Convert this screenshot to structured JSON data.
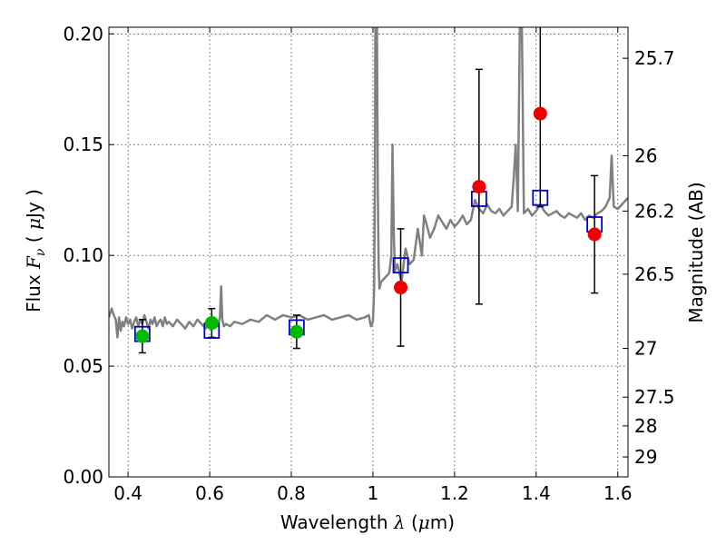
{
  "chart_data": {
    "type": "line",
    "xlabel": {
      "prefix": "Wavelength",
      "symbol": "λ",
      "open": "(",
      "unit": "μ",
      "unit_rest": "m)"
    },
    "ylabel": {
      "prefix": "Flux",
      "symbol": "F",
      "sub": "ν",
      "open": "(",
      "unit": "μ",
      "unit_rest": "Jy )"
    },
    "y2label": "Magnitude (AB)",
    "xlim": [
      0.353,
      1.625
    ],
    "ylim": [
      0.0,
      0.203
    ],
    "x_ticks": [
      0.4,
      0.6,
      0.8,
      1.0,
      1.2,
      1.4,
      1.6
    ],
    "x_tick_labels": [
      "0.4",
      "0.6",
      "0.8",
      "1",
      "1.2",
      "1.4",
      "1.6"
    ],
    "y_ticks": [
      0.0,
      0.05,
      0.1,
      0.15,
      0.2
    ],
    "y_tick_labels": [
      "0.00",
      "0.05",
      "0.10",
      "0.15",
      "0.20"
    ],
    "y2_ticks": [
      {
        "label": "25.7",
        "flux": 0.189
      },
      {
        "label": "26",
        "flux": 0.145
      },
      {
        "label": "26.2",
        "flux": 0.12
      },
      {
        "label": "26.5",
        "flux": 0.0915
      },
      {
        "label": "27",
        "flux": 0.058
      },
      {
        "label": "27.5",
        "flux": 0.036
      },
      {
        "label": "28",
        "flux": 0.023
      },
      {
        "label": "29",
        "flux": 0.009
      }
    ],
    "grid": true,
    "colors": {
      "model": "#808080",
      "detected": "#00bb00",
      "nir": "#ee0000",
      "synthetic": "#0000cc",
      "errorbar": "#000000"
    },
    "model_spectrum": {
      "x": [
        0.353,
        0.36,
        0.365,
        0.37,
        0.374,
        0.378,
        0.382,
        0.386,
        0.39,
        0.395,
        0.4,
        0.405,
        0.41,
        0.415,
        0.42,
        0.425,
        0.43,
        0.435,
        0.44,
        0.445,
        0.45,
        0.455,
        0.46,
        0.465,
        0.47,
        0.475,
        0.48,
        0.485,
        0.49,
        0.495,
        0.5,
        0.51,
        0.52,
        0.53,
        0.54,
        0.55,
        0.56,
        0.57,
        0.58,
        0.59,
        0.6,
        0.61,
        0.62,
        0.625,
        0.628,
        0.631,
        0.635,
        0.64,
        0.65,
        0.66,
        0.68,
        0.7,
        0.72,
        0.74,
        0.76,
        0.78,
        0.8,
        0.82,
        0.84,
        0.86,
        0.88,
        0.9,
        0.92,
        0.94,
        0.96,
        0.98,
        0.99,
        0.995,
        1.0,
        1.003,
        1.005,
        1.006,
        1.008,
        1.01,
        1.012,
        1.014,
        1.016,
        1.02,
        1.03,
        1.04,
        1.045,
        1.048,
        1.051,
        1.054,
        1.06,
        1.07,
        1.08,
        1.09,
        1.1,
        1.11,
        1.12,
        1.125,
        1.13,
        1.14,
        1.15,
        1.16,
        1.17,
        1.18,
        1.19,
        1.2,
        1.21,
        1.22,
        1.23,
        1.24,
        1.25,
        1.26,
        1.27,
        1.28,
        1.29,
        1.3,
        1.31,
        1.32,
        1.33,
        1.34,
        1.345,
        1.35,
        1.355,
        1.36,
        1.365,
        1.37,
        1.38,
        1.39,
        1.4,
        1.41,
        1.42,
        1.43,
        1.44,
        1.45,
        1.46,
        1.47,
        1.48,
        1.49,
        1.5,
        1.51,
        1.52,
        1.53,
        1.54,
        1.55,
        1.56,
        1.57,
        1.575,
        1.58,
        1.585,
        1.59,
        1.6,
        1.61,
        1.625
      ],
      "y": [
        0.072,
        0.076,
        0.073,
        0.071,
        0.063,
        0.072,
        0.066,
        0.07,
        0.068,
        0.072,
        0.069,
        0.071,
        0.067,
        0.07,
        0.072,
        0.068,
        0.071,
        0.069,
        0.073,
        0.07,
        0.067,
        0.071,
        0.069,
        0.072,
        0.068,
        0.07,
        0.071,
        0.068,
        0.072,
        0.069,
        0.07,
        0.068,
        0.071,
        0.069,
        0.067,
        0.07,
        0.068,
        0.071,
        0.069,
        0.067,
        0.07,
        0.069,
        0.068,
        0.072,
        0.086,
        0.071,
        0.068,
        0.069,
        0.068,
        0.07,
        0.069,
        0.071,
        0.07,
        0.073,
        0.071,
        0.073,
        0.072,
        0.073,
        0.071,
        0.072,
        0.073,
        0.071,
        0.072,
        0.073,
        0.071,
        0.072,
        0.073,
        0.068,
        0.07,
        0.085,
        0.14,
        0.203,
        0.203,
        0.203,
        0.13,
        0.096,
        0.085,
        0.088,
        0.09,
        0.092,
        0.1,
        0.15,
        0.11,
        0.093,
        0.096,
        0.088,
        0.103,
        0.096,
        0.098,
        0.112,
        0.1,
        0.118,
        0.115,
        0.108,
        0.112,
        0.118,
        0.115,
        0.112,
        0.116,
        0.113,
        0.115,
        0.118,
        0.114,
        0.116,
        0.125,
        0.121,
        0.119,
        0.123,
        0.12,
        0.119,
        0.121,
        0.118,
        0.12,
        0.122,
        0.135,
        0.15,
        0.12,
        0.203,
        0.203,
        0.119,
        0.121,
        0.118,
        0.12,
        0.123,
        0.12,
        0.118,
        0.119,
        0.12,
        0.118,
        0.117,
        0.119,
        0.118,
        0.117,
        0.119,
        0.116,
        0.118,
        0.117,
        0.119,
        0.12,
        0.122,
        0.124,
        0.126,
        0.145,
        0.122,
        0.121,
        0.123,
        0.126
      ]
    },
    "green_points": [
      {
        "x": 0.435,
        "y": 0.0635,
        "err": 0.0075
      },
      {
        "x": 0.605,
        "y": 0.0695,
        "err": 0.0065
      },
      {
        "x": 0.813,
        "y": 0.0655,
        "err": 0.0075
      }
    ],
    "red_points": [
      {
        "x": 1.068,
        "y": 0.0855,
        "err": 0.0265
      },
      {
        "x": 1.26,
        "y": 0.131,
        "err": 0.053
      },
      {
        "x": 1.41,
        "y": 0.164,
        "err": 0.042
      },
      {
        "x": 1.543,
        "y": 0.1095,
        "err": 0.0265
      }
    ],
    "blue_squares": [
      {
        "x": 0.435,
        "y": 0.0645
      },
      {
        "x": 0.605,
        "y": 0.066
      },
      {
        "x": 0.813,
        "y": 0.0675
      },
      {
        "x": 1.068,
        "y": 0.0955
      },
      {
        "x": 1.26,
        "y": 0.1255
      },
      {
        "x": 1.41,
        "y": 0.126
      },
      {
        "x": 1.543,
        "y": 0.114
      }
    ]
  }
}
